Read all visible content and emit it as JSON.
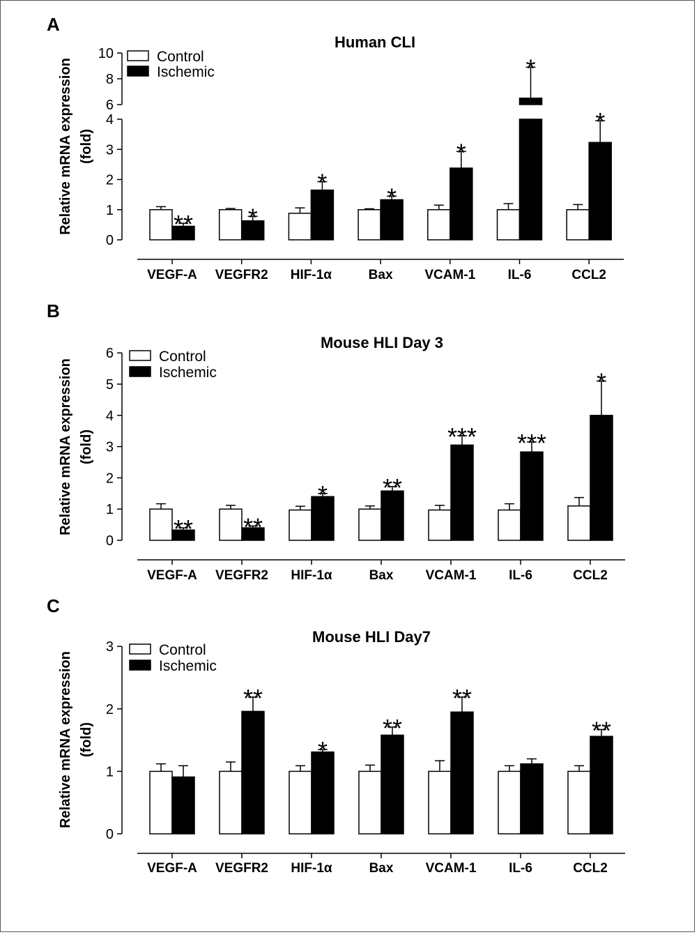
{
  "colors": {
    "control": "#ffffff",
    "ischemic": "#000000",
    "axis": "#000000"
  },
  "chart_data": [
    {
      "panel_label": "A",
      "type": "bar",
      "title": "Human CLI",
      "xlabel": "",
      "ylabel_lines": [
        "Relative mRNA expression",
        "(fold)"
      ],
      "categories": [
        "VEGF-A",
        "VEGFR2",
        "HIF-1α",
        "Bax",
        "VCAM-1",
        "IL-6",
        "CCL2"
      ],
      "series": [
        {
          "name": "Control",
          "values": [
            1.0,
            1.0,
            0.88,
            1.0,
            1.0,
            1.0,
            1.0
          ],
          "errors": [
            0.1,
            0.04,
            0.18,
            0.03,
            0.15,
            0.2,
            0.17
          ]
        },
        {
          "name": "Ischemic",
          "values": [
            0.45,
            0.63,
            1.65,
            1.33,
            2.38,
            6.5,
            3.23
          ],
          "errors": [
            0.1,
            0.15,
            0.28,
            0.12,
            0.55,
            2.4,
            0.72
          ]
        }
      ],
      "significance": [
        [
          "",
          ""
        ],
        [
          "",
          ""
        ],
        [
          "",
          ""
        ],
        [
          "",
          ""
        ],
        [
          "",
          ""
        ],
        [
          "",
          ""
        ],
        [
          "",
          ""
        ]
      ],
      "significance_ischemic": [
        "**",
        "*",
        "*",
        "*",
        "*",
        "*",
        "*"
      ],
      "ylim": [
        0,
        10
      ],
      "y_break": {
        "lower_range": [
          0,
          4
        ],
        "upper_range": [
          6,
          10
        ]
      },
      "yticks": [
        0,
        1,
        2,
        3,
        4,
        6,
        8,
        10
      ],
      "legend_position": "top-left"
    },
    {
      "panel_label": "B",
      "type": "bar",
      "title": "Mouse HLI Day 3",
      "xlabel": "",
      "ylabel_lines": [
        "Relative mRNA expression",
        "(fold)"
      ],
      "categories": [
        "VEGF-A",
        "VEGFR2",
        "HIF-1α",
        "Bax",
        "VCAM-1",
        "IL-6",
        "CCL2"
      ],
      "series": [
        {
          "name": "Control",
          "values": [
            1.0,
            1.0,
            0.97,
            1.0,
            0.97,
            0.97,
            1.1
          ],
          "errors": [
            0.17,
            0.12,
            0.12,
            0.1,
            0.15,
            0.2,
            0.27
          ]
        },
        {
          "name": "Ischemic",
          "values": [
            0.33,
            0.4,
            1.4,
            1.58,
            3.05,
            2.83,
            4.0
          ],
          "errors": [
            0.07,
            0.06,
            0.1,
            0.14,
            0.3,
            0.32,
            1.1
          ]
        }
      ],
      "significance_ischemic": [
        "**",
        "**",
        "*",
        "**",
        "***",
        "***",
        "*"
      ],
      "ylim": [
        0,
        6
      ],
      "yticks": [
        0,
        1,
        2,
        3,
        4,
        5,
        6
      ],
      "legend_position": "top-left"
    },
    {
      "panel_label": "C",
      "type": "bar",
      "title": "Mouse HLI Day7",
      "xlabel": "",
      "ylabel_lines": [
        "Relative mRNA expression",
        "(fold)"
      ],
      "categories": [
        "VEGF-A",
        "VEGFR2",
        "HIF-1α",
        "Bax",
        "VCAM-1",
        "IL-6",
        "CCL2"
      ],
      "series": [
        {
          "name": "Control",
          "values": [
            1.0,
            1.0,
            1.0,
            1.0,
            1.0,
            1.0,
            1.0
          ],
          "errors": [
            0.12,
            0.15,
            0.09,
            0.1,
            0.17,
            0.09,
            0.09
          ]
        },
        {
          "name": "Ischemic",
          "values": [
            0.91,
            1.96,
            1.31,
            1.58,
            1.95,
            1.12,
            1.56
          ],
          "errors": [
            0.18,
            0.23,
            0.04,
            0.13,
            0.24,
            0.08,
            0.11
          ]
        }
      ],
      "significance_ischemic": [
        "",
        "**",
        "*",
        "**",
        "**",
        "",
        "**"
      ],
      "ylim": [
        0,
        3
      ],
      "yticks": [
        0,
        1,
        2,
        3
      ],
      "legend_position": "top-left"
    }
  ]
}
